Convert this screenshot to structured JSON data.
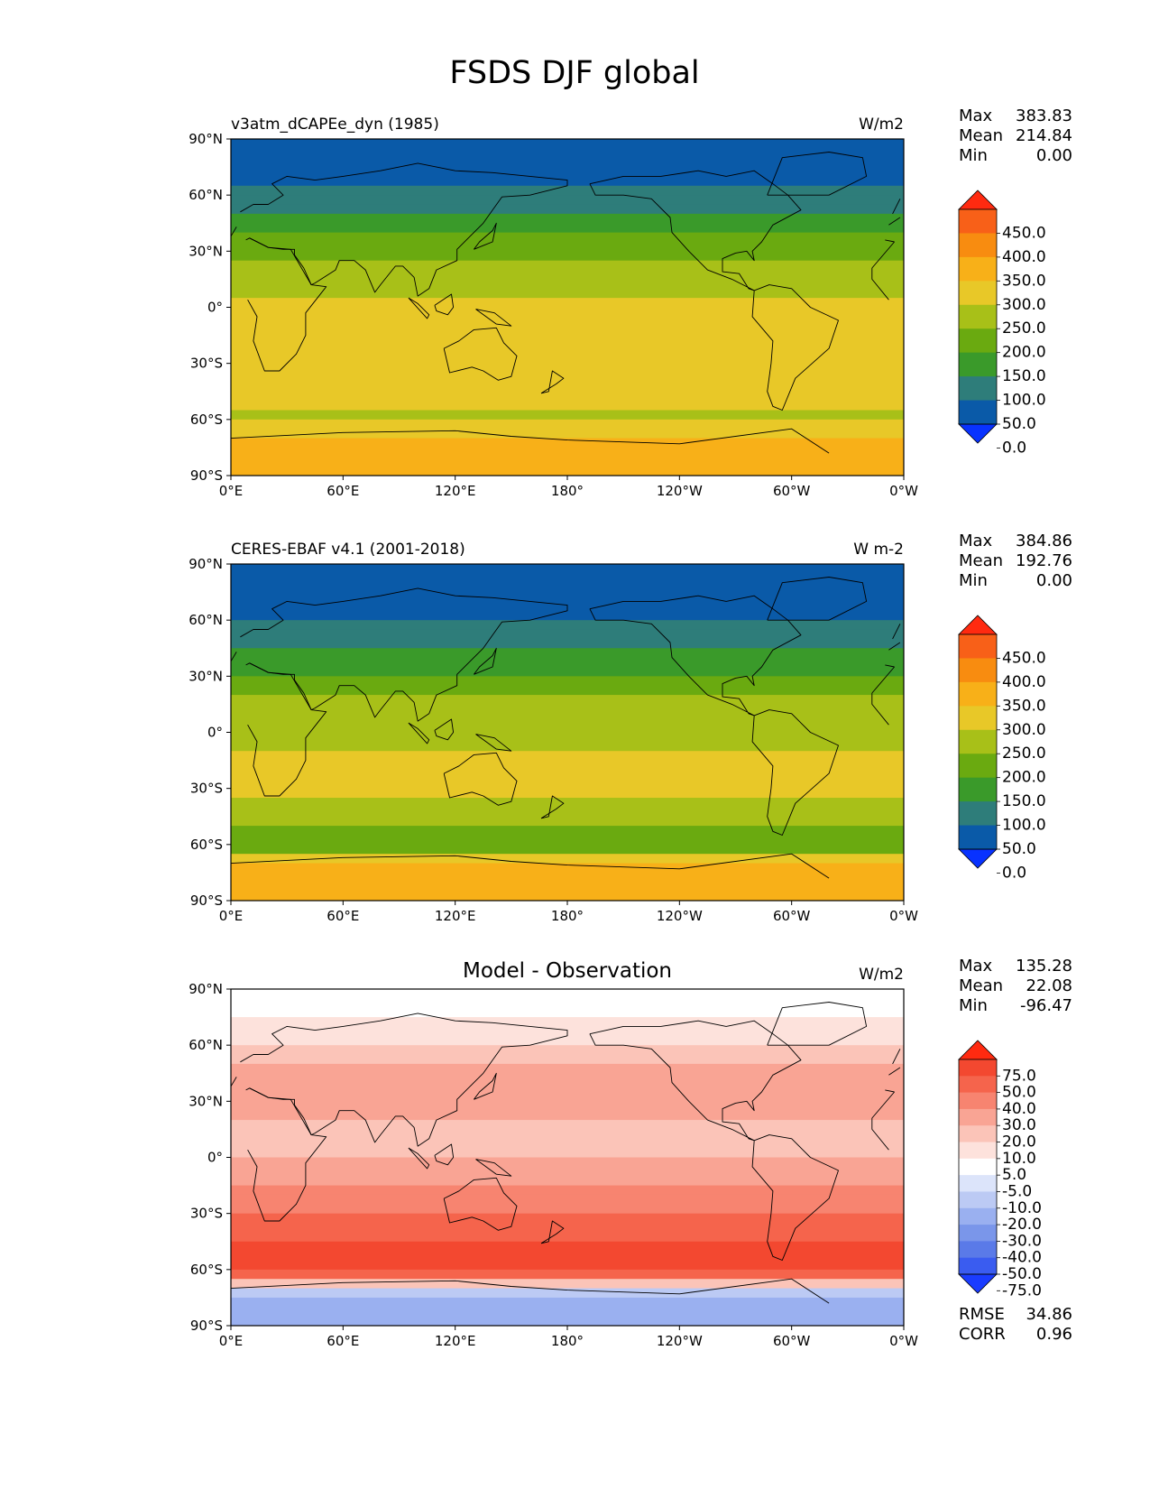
{
  "figure": {
    "title": "FSDS DJF global"
  },
  "panels": [
    {
      "left_title": "v3atm_dCAPEe_dyn (1985)",
      "center_title": "",
      "units": "W/m2",
      "stats": {
        "max_label": "Max",
        "max": "383.83",
        "mean_label": "Mean",
        "mean": "214.84",
        "min_label": "Min",
        "min": "0.00"
      },
      "colorbar": {
        "labels": [
          "450.0",
          "400.0",
          "350.0",
          "300.0",
          "250.0",
          "200.0",
          "150.0",
          "100.0",
          "50.0",
          "0.0"
        ],
        "colors": [
          "#0832ff",
          "#0a5aa8",
          "#2e7d7a",
          "#3a9a2a",
          "#6aaa10",
          "#a8c018",
          "#e8c828",
          "#f8b018",
          "#f88c10",
          "#f86018",
          "#ff2a10"
        ]
      }
    },
    {
      "left_title": "CERES-EBAF v4.1 (2001-2018)",
      "center_title": "",
      "units": "W m-2",
      "stats": {
        "max_label": "Max",
        "max": "384.86",
        "mean_label": "Mean",
        "mean": "192.76",
        "min_label": "Min",
        "min": "0.00"
      },
      "colorbar": {
        "labels": [
          "450.0",
          "400.0",
          "350.0",
          "300.0",
          "250.0",
          "200.0",
          "150.0",
          "100.0",
          "50.0",
          "0.0"
        ],
        "colors": [
          "#0832ff",
          "#0a5aa8",
          "#2e7d7a",
          "#3a9a2a",
          "#6aaa10",
          "#a8c018",
          "#e8c828",
          "#f8b018",
          "#f88c10",
          "#f86018",
          "#ff2a10"
        ]
      }
    },
    {
      "left_title": "",
      "center_title": "Model - Observation",
      "units": "W/m2",
      "stats": {
        "max_label": "Max",
        "max": "135.28",
        "mean_label": "Mean",
        "mean": "22.08",
        "min_label": "Min",
        "min": "-96.47"
      },
      "extra_stats": {
        "rmse_label": "RMSE",
        "rmse": "34.86",
        "corr_label": "CORR",
        "corr": "0.96"
      },
      "colorbar": {
        "labels": [
          "75.0",
          "50.0",
          "40.0",
          "30.0",
          "20.0",
          "10.0",
          "5.0",
          "-5.0",
          "-10.0",
          "-20.0",
          "-30.0",
          "-40.0",
          "-50.0",
          "-75.0"
        ],
        "colors": [
          "#1a3cff",
          "#3a5cf0",
          "#5a7ae8",
          "#7a96ea",
          "#9ab0f0",
          "#bccaf4",
          "#dce4fa",
          "#ffffff",
          "#fde2dc",
          "#fbc4b8",
          "#f9a494",
          "#f78470",
          "#f5644c",
          "#f34830",
          "#ff2a10"
        ]
      }
    }
  ],
  "axes": {
    "x_ticks": [
      "0°E",
      "60°E",
      "120°E",
      "180°",
      "120°W",
      "60°W",
      "0°W"
    ],
    "y_ticks": [
      "90°N",
      "60°N",
      "30°N",
      "0°",
      "30°S",
      "60°S",
      "90°S"
    ]
  },
  "chart_data": {
    "type": "heatmap",
    "title": "FSDS DJF global",
    "variable": "FSDS",
    "season": "DJF",
    "maps": [
      {
        "name": "v3atm_dCAPEe_dyn (1985)",
        "units": "W/m2",
        "max": 383.83,
        "mean": 214.84,
        "min": 0.0,
        "levels": [
          0,
          50,
          100,
          150,
          200,
          250,
          300,
          350,
          400,
          450
        ],
        "zonal_profile": {
          "lat": [
            90,
            75,
            60,
            45,
            30,
            15,
            0,
            -15,
            -30,
            -45,
            -60,
            -75,
            -90
          ],
          "value": [
            0,
            30,
            60,
            120,
            180,
            230,
            260,
            290,
            300,
            260,
            240,
            320,
            330
          ]
        }
      },
      {
        "name": "CERES-EBAF v4.1 (2001-2018)",
        "units": "W m-2",
        "max": 384.86,
        "mean": 192.76,
        "min": 0.0,
        "levels": [
          0,
          50,
          100,
          150,
          200,
          250,
          300,
          350,
          400,
          450
        ],
        "zonal_profile": {
          "lat": [
            90,
            75,
            60,
            45,
            30,
            15,
            0,
            -15,
            -30,
            -45,
            -60,
            -75,
            -90
          ],
          "value": [
            0,
            20,
            50,
            90,
            150,
            210,
            230,
            265,
            270,
            210,
            160,
            340,
            350
          ]
        }
      },
      {
        "name": "Model - Observation",
        "units": "W/m2",
        "max": 135.28,
        "mean": 22.08,
        "min": -96.47,
        "rmse": 34.86,
        "corr": 0.96,
        "levels": [
          -75,
          -50,
          -40,
          -30,
          -20,
          -10,
          -5,
          5,
          10,
          20,
          30,
          40,
          50,
          75
        ],
        "zonal_profile": {
          "lat": [
            90,
            75,
            60,
            45,
            30,
            15,
            0,
            -15,
            -30,
            -45,
            -60,
            -75,
            -90
          ],
          "value": [
            0,
            5,
            10,
            25,
            30,
            15,
            20,
            30,
            40,
            50,
            60,
            -30,
            -20
          ]
        }
      }
    ],
    "xlim": [
      0,
      360
    ],
    "ylim": [
      -90,
      90
    ]
  }
}
